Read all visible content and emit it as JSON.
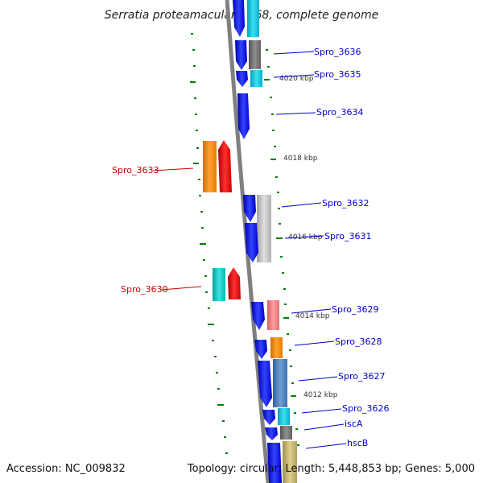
{
  "title": "Serratia proteamaculans 568, complete genome",
  "accession": "Accession: NC_009832",
  "summary": "Topology: circular; Length: 5,448,853 bp; Genes: 5,000",
  "position_markers": [
    {
      "label": "4020 kbp"
    },
    {
      "label": "4018 kbp"
    },
    {
      "label": "4016 kbp"
    },
    {
      "label": "4014 kbp"
    },
    {
      "label": "4012 kbp"
    }
  ],
  "gene_labels": [
    {
      "label": "Spro_3636",
      "color": "#0000cc"
    },
    {
      "label": "Spro_3635",
      "color": "#0000cc"
    },
    {
      "label": "Spro_3634",
      "color": "#0000cc"
    },
    {
      "label": "Spro_3633",
      "color": "#cc0000"
    },
    {
      "label": "Spro_3632",
      "color": "#0000cc"
    },
    {
      "label": "Spro_3631",
      "color": "#0000cc"
    },
    {
      "label": "Spro_3630",
      "color": "#cc0000"
    },
    {
      "label": "Spro_3629",
      "color": "#0000cc"
    },
    {
      "label": "Spro_3628",
      "color": "#0000cc"
    },
    {
      "label": "Spro_3627",
      "color": "#0000cc"
    },
    {
      "label": "Spro_3626",
      "color": "#0000cc"
    },
    {
      "label": "iscA",
      "color": "#0000cc"
    },
    {
      "label": "hscB",
      "color": "#0000cc"
    }
  ],
  "colors": {
    "backbone": "#808080",
    "tick": "#008000",
    "forward_strand": "#0000ee",
    "reverse_strand": "#ee0000"
  }
}
